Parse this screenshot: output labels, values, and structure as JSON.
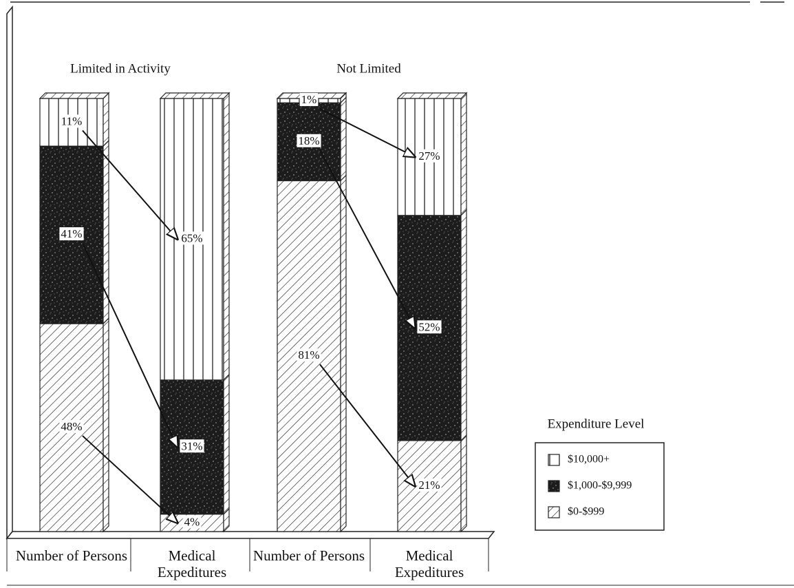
{
  "chart_data": {
    "type": "stacked-bar-3d",
    "groups": [
      "Limited in Activity",
      "Not Limited"
    ],
    "categories": [
      "Number of Persons",
      "Medical Expeditures",
      "Number of Persons",
      "Medical Expeditures"
    ],
    "legend_title": "Expenditure Level",
    "series": [
      {
        "name": "$0-$999",
        "color": "#ffffff",
        "pattern": "diagonal-hatch",
        "values": [
          48,
          4,
          81,
          21
        ],
        "value_labels": [
          "48%",
          "4%",
          "81%",
          "21%"
        ]
      },
      {
        "name": "$1,000-$9,999",
        "color": "#1c1c1c",
        "pattern": "speckle",
        "values": [
          41,
          31,
          18,
          52
        ],
        "value_labels": [
          "41%",
          "31%",
          "18%",
          "52%"
        ]
      },
      {
        "name": "$10,000+",
        "color": "#ffffff",
        "pattern": "vertical-lines",
        "values": [
          11,
          65,
          1,
          27
        ],
        "value_labels": [
          "11%",
          "65%",
          "1%",
          "27%"
        ]
      }
    ]
  }
}
